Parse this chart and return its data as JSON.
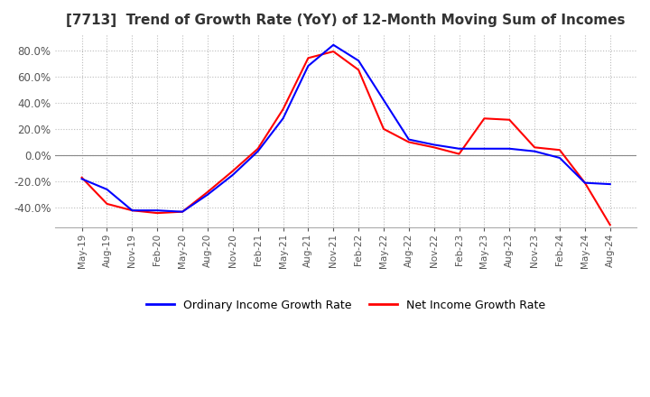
{
  "title": "[7713]  Trend of Growth Rate (YoY) of 12-Month Moving Sum of Incomes",
  "title_fontsize": 11,
  "ylim": [
    -55,
    92
  ],
  "yticks": [
    -40,
    -20,
    0,
    20,
    40,
    60,
    80
  ],
  "grid_color": "#bbbbbb",
  "background_color": "#ffffff",
  "legend_labels": [
    "Ordinary Income Growth Rate",
    "Net Income Growth Rate"
  ],
  "line_colors": [
    "#0000ff",
    "#ff0000"
  ],
  "x_labels": [
    "May-19",
    "Aug-19",
    "Nov-19",
    "Feb-20",
    "May-20",
    "Aug-20",
    "Nov-20",
    "Feb-21",
    "May-21",
    "Aug-21",
    "Nov-21",
    "Feb-22",
    "May-22",
    "Aug-22",
    "Nov-22",
    "Feb-23",
    "May-23",
    "Aug-23",
    "Nov-23",
    "Feb-24",
    "May-24",
    "Aug-24"
  ],
  "ordinary_income": [
    -18,
    -26,
    -42,
    -42,
    -43,
    -30,
    -15,
    3,
    28,
    68,
    84,
    72,
    42,
    12,
    8,
    5,
    5,
    5,
    3,
    -2,
    -21,
    -22
  ],
  "net_income": [
    -17,
    -37,
    -42,
    -44,
    -43,
    -28,
    -12,
    5,
    35,
    74,
    79,
    65,
    20,
    10,
    6,
    1,
    28,
    27,
    6,
    4,
    -21,
    -53
  ]
}
